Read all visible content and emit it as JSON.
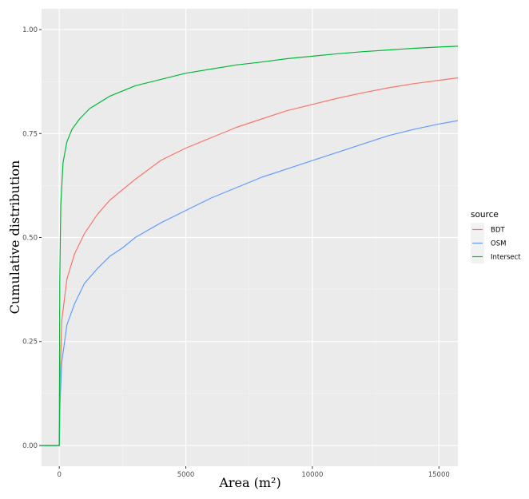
{
  "chart_data": {
    "type": "line",
    "xlabel": "Area (m²)",
    "ylabel": "Cumulative distribution",
    "xlim": [
      -700,
      15750
    ],
    "ylim": [
      -0.05,
      1.05
    ],
    "x_ticks": [
      0,
      5000,
      10000,
      15000
    ],
    "x_tick_labels": [
      "0",
      "5000",
      "10000",
      "15000"
    ],
    "y_ticks": [
      0,
      0.25,
      0.5,
      0.75,
      1.0
    ],
    "y_tick_labels": [
      "0.00",
      "0.25",
      "0.50",
      "0.75",
      "1.00"
    ],
    "grid": true,
    "legend": {
      "title": "source",
      "position": "right"
    },
    "series": [
      {
        "name": "BDT",
        "color": "#F8766D",
        "points": [
          [
            -700,
            0
          ],
          [
            0,
            0
          ],
          [
            30,
            0.15
          ],
          [
            100,
            0.3
          ],
          [
            300,
            0.4
          ],
          [
            600,
            0.46
          ],
          [
            1000,
            0.51
          ],
          [
            1500,
            0.555
          ],
          [
            2000,
            0.59
          ],
          [
            2500,
            0.615
          ],
          [
            3000,
            0.64
          ],
          [
            4000,
            0.685
          ],
          [
            5000,
            0.715
          ],
          [
            6000,
            0.74
          ],
          [
            7000,
            0.765
          ],
          [
            8000,
            0.785
          ],
          [
            9000,
            0.805
          ],
          [
            10000,
            0.82
          ],
          [
            11000,
            0.835
          ],
          [
            12000,
            0.848
          ],
          [
            13000,
            0.86
          ],
          [
            14000,
            0.87
          ],
          [
            15000,
            0.878
          ],
          [
            15750,
            0.884
          ]
        ]
      },
      {
        "name": "OSM",
        "color": "#619CFF",
        "points": [
          [
            -700,
            0
          ],
          [
            0,
            0
          ],
          [
            30,
            0.1
          ],
          [
            100,
            0.2
          ],
          [
            300,
            0.29
          ],
          [
            600,
            0.34
          ],
          [
            1000,
            0.39
          ],
          [
            1500,
            0.425
          ],
          [
            2000,
            0.455
          ],
          [
            2500,
            0.475
          ],
          [
            3000,
            0.5
          ],
          [
            4000,
            0.535
          ],
          [
            5000,
            0.565
          ],
          [
            6000,
            0.595
          ],
          [
            7000,
            0.62
          ],
          [
            8000,
            0.645
          ],
          [
            9000,
            0.665
          ],
          [
            10000,
            0.685
          ],
          [
            11000,
            0.705
          ],
          [
            12000,
            0.725
          ],
          [
            13000,
            0.745
          ],
          [
            14000,
            0.76
          ],
          [
            15000,
            0.773
          ],
          [
            15750,
            0.781
          ]
        ]
      },
      {
        "name": "Intersect",
        "color": "#00BA38",
        "points": [
          [
            -700,
            0
          ],
          [
            0,
            0
          ],
          [
            20,
            0.4
          ],
          [
            60,
            0.58
          ],
          [
            150,
            0.68
          ],
          [
            300,
            0.73
          ],
          [
            500,
            0.76
          ],
          [
            800,
            0.785
          ],
          [
            1200,
            0.81
          ],
          [
            2000,
            0.84
          ],
          [
            3000,
            0.865
          ],
          [
            4000,
            0.88
          ],
          [
            5000,
            0.895
          ],
          [
            6000,
            0.905
          ],
          [
            7000,
            0.915
          ],
          [
            8000,
            0.922
          ],
          [
            9000,
            0.93
          ],
          [
            10000,
            0.936
          ],
          [
            11000,
            0.942
          ],
          [
            12000,
            0.947
          ],
          [
            13000,
            0.951
          ],
          [
            14000,
            0.955
          ],
          [
            15000,
            0.958
          ],
          [
            15750,
            0.96
          ]
        ]
      }
    ]
  }
}
